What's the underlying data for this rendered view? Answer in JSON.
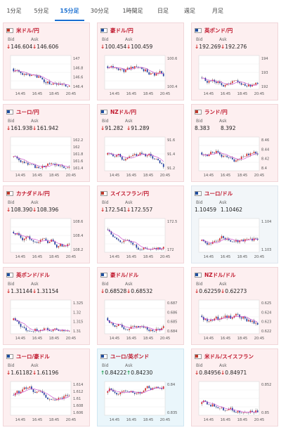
{
  "tabs": [
    {
      "label": "1分足",
      "active": false
    },
    {
      "label": "5分足",
      "active": false
    },
    {
      "label": "15分足",
      "active": true
    },
    {
      "label": "30分足",
      "active": false
    },
    {
      "label": "1時間足",
      "active": false
    },
    {
      "label": "日足",
      "active": false
    },
    {
      "label": "週足",
      "active": false
    },
    {
      "label": "月足",
      "active": false
    }
  ],
  "bid_label": "Bid",
  "ask_label": "Ask",
  "time_labels": [
    "14:45",
    "16:45",
    "18:45",
    "20:45"
  ],
  "colors": {
    "up": "#1d9e4f",
    "down": "#d22a2a",
    "ma": "#c83cc8",
    "title": "#c0182d",
    "tab_active": "#1a6fd1"
  },
  "pairs": [
    {
      "name": "米ドル/円",
      "trend": "down",
      "bid": "146.604",
      "ask": "146.606",
      "ylabels": [
        "147",
        "146.8",
        "146.6",
        "146.4"
      ],
      "theme": "pink"
    },
    {
      "name": "豪ドル/円",
      "trend": "down",
      "bid": "100.454",
      "ask": "100.459",
      "ylabels": [
        "100.6",
        "100.4"
      ],
      "theme": "pink"
    },
    {
      "name": "英ポンド/円",
      "trend": "down",
      "bid": "192.269",
      "ask": "192.276",
      "ylabels": [
        "194",
        "193",
        "192"
      ],
      "theme": "pink"
    },
    {
      "name": "ユーロ/円",
      "trend": "down",
      "bid": "161.938",
      "ask": "161.942",
      "ylabels": [
        "162.2",
        "162",
        "161.8",
        "161.6",
        "161.4"
      ],
      "theme": "pink"
    },
    {
      "name": "NZドル/円",
      "trend": "down",
      "bid": "91.282",
      "ask": "91.289",
      "ylabels": [
        "91.6",
        "91.4",
        "91.2"
      ],
      "theme": "pink"
    },
    {
      "name": "ランド/円",
      "trend": "none",
      "bid": "8.383",
      "ask": "8.392",
      "ylabels": [
        "8.46",
        "8.44",
        "8.42",
        "8.4"
      ],
      "theme": "pink"
    },
    {
      "name": "カナダドル/円",
      "trend": "down",
      "bid": "108.390",
      "ask": "108.396",
      "ylabels": [
        "108.6",
        "108.4",
        "108.2"
      ],
      "theme": "pink"
    },
    {
      "name": "スイスフラン/円",
      "trend": "down",
      "bid": "172.541",
      "ask": "172.557",
      "ylabels": [
        "172.5",
        "172"
      ],
      "theme": "pink"
    },
    {
      "name": "ユーロ/ドル",
      "trend": "none",
      "bid": "1.10459",
      "ask": "1.10462",
      "ylabels": [
        "1.104",
        "1.103"
      ],
      "theme": "neutral"
    },
    {
      "name": "英ポンド/ドル",
      "trend": "down",
      "bid": "1.31144",
      "ask": "1.31154",
      "ylabels": [
        "1.325",
        "1.32",
        "1.315",
        "1.31"
      ],
      "theme": "pink"
    },
    {
      "name": "豪ドル/ドル",
      "trend": "down",
      "bid": "0.68528",
      "ask": "0.68532",
      "ylabels": [
        "0.687",
        "0.686",
        "0.685",
        "0.684"
      ],
      "theme": "pink"
    },
    {
      "name": "NZドル/ドル",
      "trend": "down",
      "bid": "0.62259",
      "ask": "0.62273",
      "ylabels": [
        "0.625",
        "0.624",
        "0.623",
        "0.622"
      ],
      "theme": "pink"
    },
    {
      "name": "ユーロ/豪ドル",
      "trend": "down",
      "bid": "1.61182",
      "ask": "1.61196",
      "ylabels": [
        "1.614",
        "1.612",
        "1.61",
        "1.608",
        "1.606"
      ],
      "theme": "pink"
    },
    {
      "name": "ユーロ/英ポンド",
      "trend": "up",
      "bid": "0.84222",
      "ask": "0.84230",
      "ylabels": [
        "0.84",
        "0.835"
      ],
      "theme": "blue"
    },
    {
      "name": "米ドル/スイスフラン",
      "trend": "down",
      "bid": "0.84956",
      "ask": "0.84971",
      "ylabels": [
        "0.852",
        "0.85"
      ],
      "theme": "pink"
    }
  ]
}
